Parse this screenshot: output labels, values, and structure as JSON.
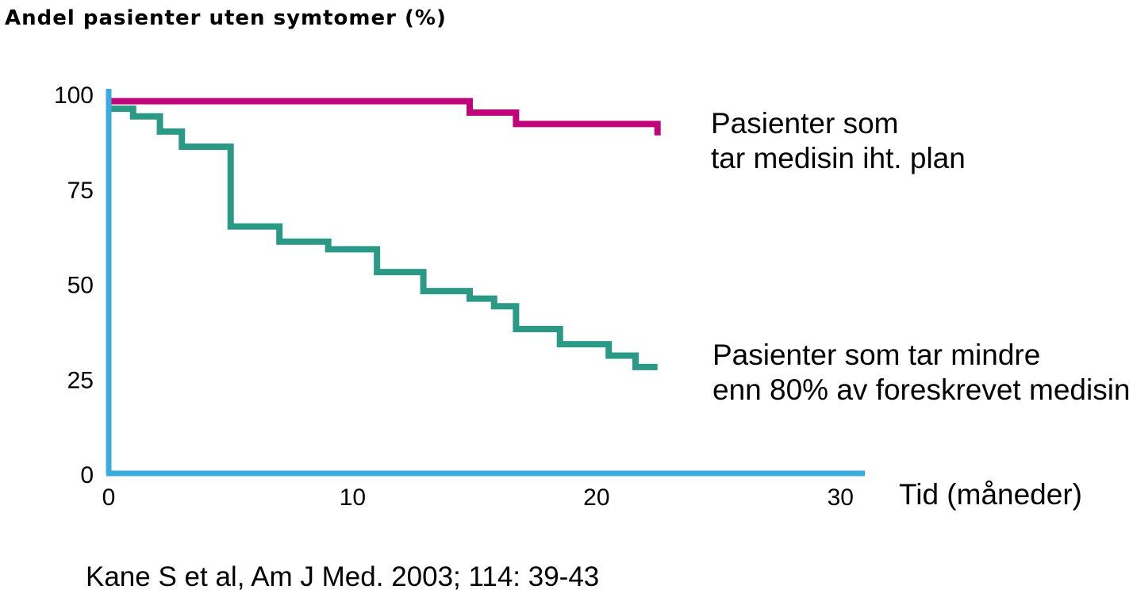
{
  "chart_data": {
    "type": "line",
    "step": true,
    "ylabel": "Andel pasienter uten symtomer (%)",
    "xlabel": "Tid (måneder)",
    "xlim": [
      0,
      31
    ],
    "ylim": [
      0,
      100
    ],
    "x_ticks": [
      "0",
      "10",
      "20",
      "30"
    ],
    "y_ticks": [
      "100",
      "75",
      "50",
      "25",
      "0"
    ],
    "grid": false,
    "axis_color": "#3aabdd",
    "series": [
      {
        "name_lines": [
          "Pasienter som",
          "tar medisin iht. plan"
        ],
        "color": "#c0047b",
        "points": [
          [
            0,
            98
          ],
          [
            14.8,
            98
          ],
          [
            14.8,
            95
          ],
          [
            16.7,
            95
          ],
          [
            16.7,
            92
          ],
          [
            22.5,
            92
          ],
          [
            22.5,
            89
          ]
        ]
      },
      {
        "name_lines": [
          "Pasienter som tar mindre",
          "enn 80% av foreskrevet medisin"
        ],
        "color": "#2a9a87",
        "points": [
          [
            0,
            96
          ],
          [
            1,
            96
          ],
          [
            1,
            94
          ],
          [
            2.1,
            94
          ],
          [
            2.1,
            90
          ],
          [
            3,
            90
          ],
          [
            3,
            86
          ],
          [
            5,
            86
          ],
          [
            5,
            65
          ],
          [
            7,
            65
          ],
          [
            7,
            61
          ],
          [
            9,
            61
          ],
          [
            9,
            59
          ],
          [
            11,
            59
          ],
          [
            11,
            53
          ],
          [
            12.9,
            53
          ],
          [
            12.9,
            48
          ],
          [
            14.8,
            48
          ],
          [
            14.8,
            46
          ],
          [
            15.8,
            46
          ],
          [
            15.8,
            44
          ],
          [
            16.7,
            44
          ],
          [
            16.7,
            38
          ],
          [
            18.5,
            38
          ],
          [
            18.5,
            34
          ],
          [
            20.5,
            34
          ],
          [
            20.5,
            31
          ],
          [
            21.6,
            31
          ],
          [
            21.6,
            28
          ],
          [
            22.5,
            28
          ]
        ]
      }
    ]
  },
  "source": "Kane S et al, Am J Med. 2003; 114: 39-43"
}
